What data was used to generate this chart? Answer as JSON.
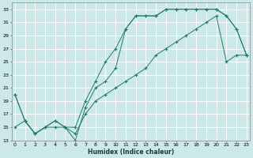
{
  "xlabel": "Humidex (Indice chaleur)",
  "bg_color": "#cce8e8",
  "grid_color": "#ffffff",
  "line_color": "#1f7a6e",
  "xmin": 0,
  "xmax": 23,
  "ymin": 13,
  "ymax": 34,
  "yticks": [
    13,
    15,
    17,
    19,
    21,
    23,
    25,
    27,
    29,
    31,
    33
  ],
  "xticks": [
    0,
    1,
    2,
    3,
    4,
    5,
    6,
    7,
    8,
    9,
    10,
    11,
    12,
    13,
    14,
    15,
    16,
    17,
    18,
    19,
    20,
    21,
    22,
    23
  ],
  "line1_x": [
    0,
    1,
    2,
    3,
    4,
    5,
    6,
    7,
    8,
    9,
    10,
    11,
    12,
    13,
    14,
    15,
    16,
    17,
    18,
    19,
    20,
    21,
    22,
    23
  ],
  "line1_y": [
    20,
    16,
    14,
    15,
    15,
    15,
    13,
    18,
    21,
    22,
    24,
    30,
    32,
    32,
    32,
    33,
    33,
    33,
    33,
    33,
    33,
    32,
    30,
    26
  ],
  "line2_x": [
    0,
    1,
    2,
    3,
    4,
    5,
    6,
    7,
    8,
    9,
    10,
    11,
    12,
    13,
    14,
    15,
    16,
    17,
    18,
    19,
    20,
    21,
    22,
    23
  ],
  "line2_y": [
    20,
    16,
    14,
    15,
    16,
    15,
    15,
    19,
    22,
    25,
    27,
    30,
    32,
    32,
    32,
    33,
    33,
    33,
    33,
    33,
    33,
    32,
    30,
    26
  ],
  "line3_x": [
    0,
    1,
    2,
    3,
    4,
    5,
    6,
    7,
    8,
    9,
    10,
    11,
    12,
    13,
    14,
    15,
    16,
    17,
    18,
    19,
    20,
    21,
    22,
    23
  ],
  "line3_y": [
    15,
    16,
    14,
    15,
    16,
    15,
    14,
    17,
    19,
    20,
    21,
    22,
    23,
    24,
    26,
    27,
    28,
    29,
    30,
    31,
    32,
    25,
    26,
    26
  ]
}
